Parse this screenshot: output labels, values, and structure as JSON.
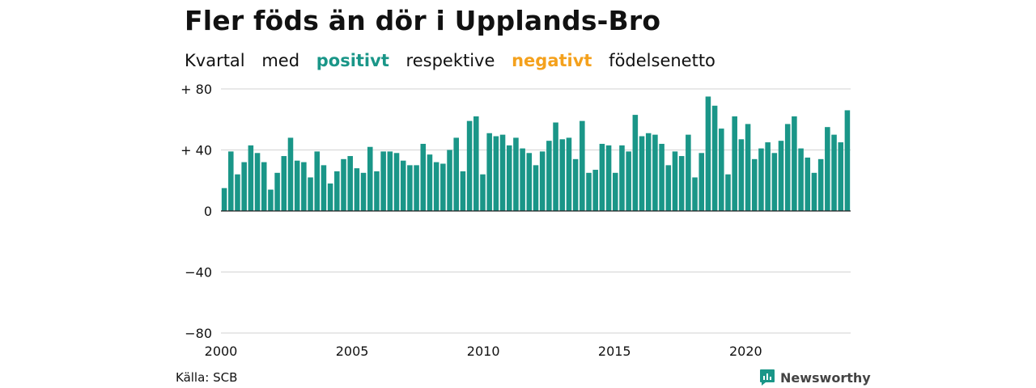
{
  "header": {
    "title": "Fler föds än dör i Upplands-Bro",
    "subtitle": {
      "w1": "Kvartal",
      "w2": "med",
      "positive": "positivt",
      "w3": "respektive",
      "negative": "negativt",
      "w4": "födelsenetto"
    }
  },
  "colors": {
    "positive": "#1a9688",
    "negative": "#f4a11d",
    "grid": "#d9d9d9",
    "text": "#111111"
  },
  "chart_data": {
    "type": "bar",
    "title": "Fler föds än dör i Upplands-Bro",
    "subtitle": "Kvartal med positivt respektive negativt födelsenetto",
    "x_start": 2000,
    "x_end": 2024,
    "xticks": [
      "2000",
      "2005",
      "2010",
      "2015",
      "2020"
    ],
    "ylim": [
      -80,
      80
    ],
    "yticks": [
      "+ 80",
      "+ 40",
      "0",
      "−40",
      "−80"
    ],
    "ytick_values": [
      80,
      40,
      0,
      -40,
      -80
    ],
    "grid": true,
    "values": [
      15,
      39,
      24,
      32,
      43,
      38,
      32,
      14,
      25,
      36,
      48,
      33,
      32,
      22,
      39,
      30,
      18,
      26,
      34,
      36,
      28,
      25,
      42,
      26,
      39,
      39,
      38,
      33,
      30,
      30,
      44,
      37,
      32,
      31,
      40,
      48,
      26,
      59,
      62,
      24,
      51,
      49,
      50,
      43,
      48,
      41,
      38,
      30,
      39,
      46,
      58,
      47,
      48,
      34,
      59,
      25,
      27,
      44,
      43,
      25,
      43,
      39,
      63,
      49,
      51,
      50,
      44,
      30,
      39,
      36,
      50,
      22,
      38,
      75,
      69,
      54,
      24,
      62,
      47,
      57,
      34,
      41,
      45,
      38,
      46,
      57,
      62,
      41,
      35,
      25,
      34,
      55,
      50,
      45,
      66
    ]
  },
  "footer": {
    "source": "Källa: SCB",
    "brand": "Newsworthy"
  }
}
